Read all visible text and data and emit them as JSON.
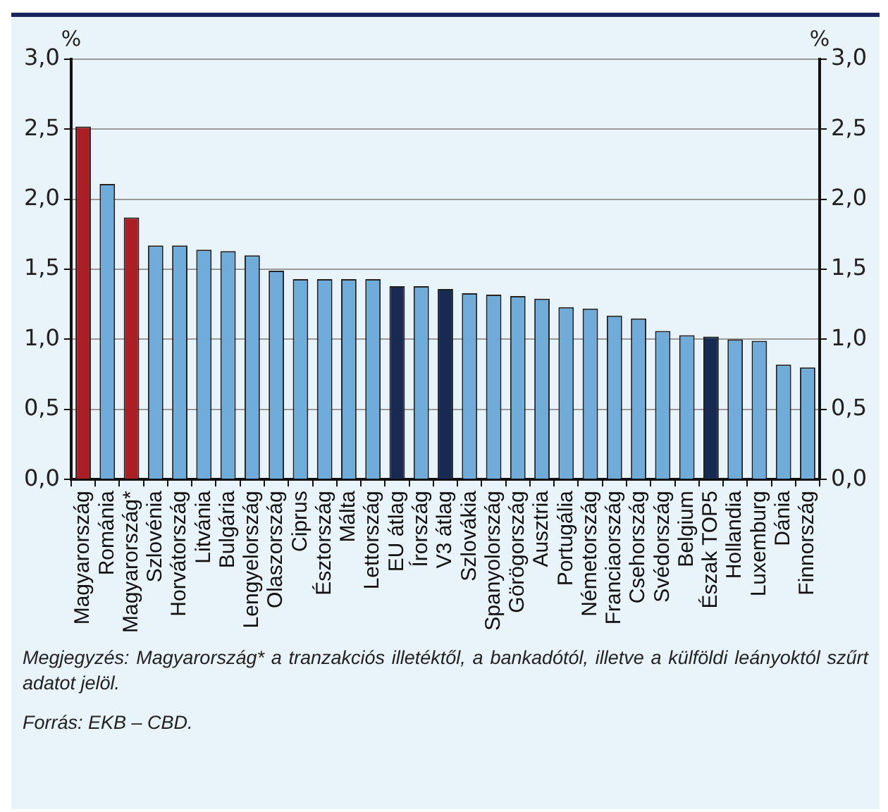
{
  "chart_data": {
    "type": "bar",
    "categories": [
      "Magyarország",
      "Románia",
      "Magyarország*",
      "Szlovénia",
      "Horvátország",
      "Litvánia",
      "Bulgária",
      "Lengyelország",
      "Olaszország",
      "Ciprus",
      "Észtország",
      "Málta",
      "Lettország",
      "EU átlag",
      "Írország",
      "V3 átlag",
      "Szlovákia",
      "Spanyolország",
      "Görögország",
      "Ausztria",
      "Portugália",
      "Németország",
      "Franciaország",
      "Csehország",
      "Svédország",
      "Belgium",
      "Észak TOP5",
      "Hollandia",
      "Luxemburg",
      "Dánia",
      "Finnország"
    ],
    "values": [
      2.52,
      2.11,
      1.87,
      1.67,
      1.67,
      1.64,
      1.63,
      1.6,
      1.49,
      1.43,
      1.43,
      1.43,
      1.43,
      1.38,
      1.38,
      1.36,
      1.33,
      1.32,
      1.31,
      1.29,
      1.23,
      1.22,
      1.17,
      1.15,
      1.06,
      1.03,
      1.02,
      1.0,
      0.99,
      0.82,
      0.8
    ],
    "colors": [
      "#aa1f24",
      "#70acd9",
      "#aa1f24",
      "#70acd9",
      "#70acd9",
      "#70acd9",
      "#70acd9",
      "#70acd9",
      "#70acd9",
      "#70acd9",
      "#70acd9",
      "#70acd9",
      "#70acd9",
      "#192a52",
      "#70acd9",
      "#192a52",
      "#70acd9",
      "#70acd9",
      "#70acd9",
      "#70acd9",
      "#70acd9",
      "#70acd9",
      "#70acd9",
      "#70acd9",
      "#70acd9",
      "#70acd9",
      "#192a52",
      "#70acd9",
      "#70acd9",
      "#70acd9",
      "#70acd9"
    ],
    "ylabel": "%",
    "y2label": "%",
    "ylim": [
      0,
      3
    ],
    "yticks": [
      {
        "value": 0,
        "label": "0,0"
      },
      {
        "value": 0.5,
        "label": "0,5"
      },
      {
        "value": 1,
        "label": "1,0"
      },
      {
        "value": 1.5,
        "label": "1,5"
      },
      {
        "value": 2,
        "label": "2,0"
      },
      {
        "value": 2.5,
        "label": "2,5"
      },
      {
        "value": 3,
        "label": "3,0"
      }
    ],
    "y2lim": [
      0,
      3
    ],
    "y2ticks": [
      {
        "value": 0,
        "label": "0,0"
      },
      {
        "value": 0.5,
        "label": "0,5"
      },
      {
        "value": 1,
        "label": "1,0"
      },
      {
        "value": 1.5,
        "label": "1,5"
      },
      {
        "value": 2,
        "label": "2,0"
      },
      {
        "value": 2.5,
        "label": "2,5"
      },
      {
        "value": 3,
        "label": "3,0"
      }
    ],
    "grid": "y",
    "legend": false,
    "annotations": [
      "Megjegyzés: Magyarország* a tranzakciós illetéktől, a bankadótól, illetve a külföldi leányoktól szűrt adatot jelöl.",
      "Forrás: EKB – CBD."
    ]
  }
}
